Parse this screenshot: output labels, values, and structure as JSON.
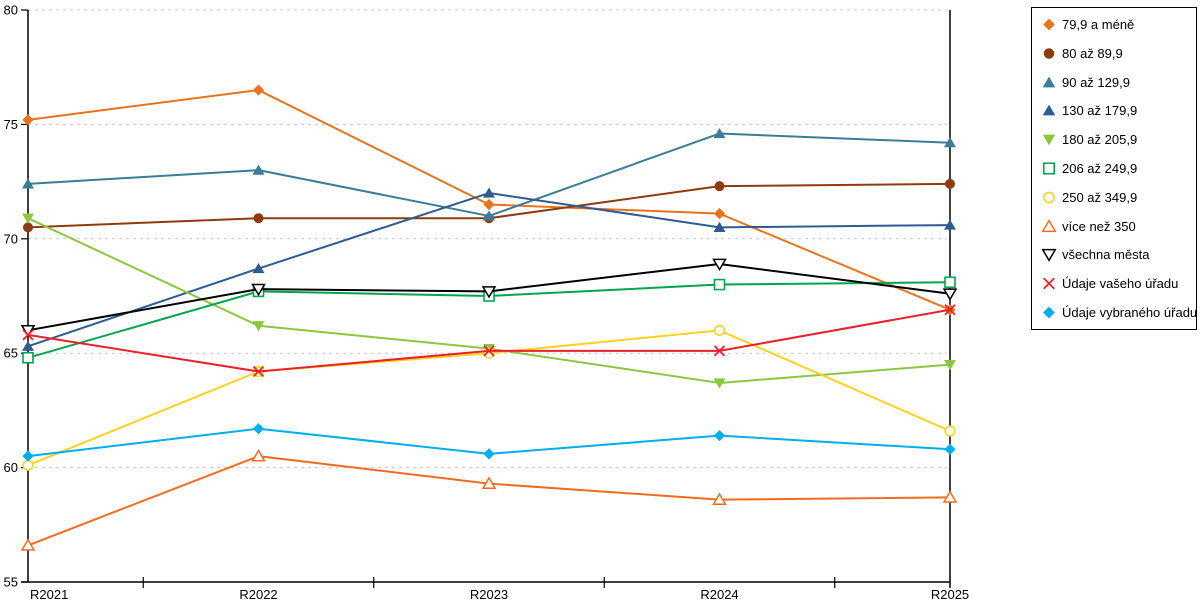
{
  "chart_data": {
    "type": "line",
    "title": "",
    "xlabel": "",
    "ylabel": "",
    "categories": [
      "R2021",
      "R2022",
      "R2023",
      "R2024",
      "R2025"
    ],
    "ylim": [
      55,
      80
    ],
    "yticks": [
      55,
      60,
      65,
      70,
      75,
      80
    ],
    "grid": "horizontal dashed gridlines at each y tick",
    "legend_position": "right",
    "series": [
      {
        "name": "79,9 a méně",
        "color": "#E8731C",
        "marker": "diamond",
        "values": [
          75.2,
          76.5,
          71.5,
          71.1,
          66.9
        ]
      },
      {
        "name": "80 až 89,9",
        "color": "#8E3B10",
        "marker": "circle",
        "values": [
          70.5,
          70.9,
          70.9,
          72.3,
          72.4
        ]
      },
      {
        "name": "90 až 129,9",
        "color": "#3A7D96",
        "marker": "triangle-up",
        "values": [
          72.4,
          73.0,
          71.0,
          74.6,
          74.2
        ]
      },
      {
        "name": "130 až 179,9",
        "color": "#2F5B8F",
        "marker": "triangle-up",
        "values": [
          65.3,
          68.7,
          72.0,
          70.5,
          70.6
        ]
      },
      {
        "name": "180 až 205,9",
        "color": "#8DC63F",
        "marker": "triangle-down",
        "values": [
          70.9,
          66.2,
          65.2,
          63.7,
          64.5
        ]
      },
      {
        "name": "206 až 249,9",
        "color": "#00A550",
        "marker": "square-open",
        "values": [
          64.8,
          67.7,
          67.5,
          68.0,
          68.1
        ]
      },
      {
        "name": "250 až 349,9",
        "color": "#FFD21F",
        "marker": "circle-open",
        "values": [
          60.1,
          64.2,
          65.0,
          66.0,
          61.6
        ]
      },
      {
        "name": "více než 350",
        "color": "#F26B21",
        "marker": "triangle-up-open",
        "values": [
          56.6,
          60.5,
          59.3,
          58.6,
          58.7
        ]
      },
      {
        "name": "všechna města",
        "color": "#000000",
        "marker": "triangle-down-open",
        "values": [
          66.0,
          67.8,
          67.7,
          68.9,
          67.6
        ]
      },
      {
        "name": "Údaje vašeho úřadu",
        "color": "#E8212B",
        "marker": "x",
        "values": [
          65.8,
          64.2,
          65.1,
          65.1,
          66.9
        ]
      },
      {
        "name": "Údaje vybraného úřadu",
        "color": "#00AEEF",
        "marker": "diamond",
        "values": [
          60.5,
          61.7,
          60.6,
          61.4,
          60.8
        ]
      }
    ]
  },
  "colors": {
    "background": "#FFFFFF",
    "gridline": "#C8C8C8",
    "axis": "#000000"
  }
}
